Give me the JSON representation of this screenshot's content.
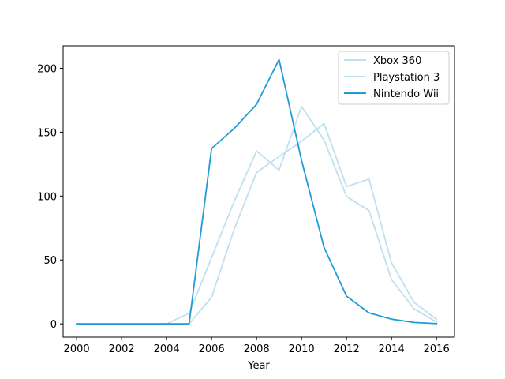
{
  "chart_data": {
    "type": "line",
    "title": "",
    "xlabel": "Year",
    "ylabel": "",
    "xlim": [
      1999.4,
      2016.8
    ],
    "ylim": [
      -10.4,
      217.6
    ],
    "x_ticks": [
      2000,
      2002,
      2004,
      2006,
      2008,
      2010,
      2012,
      2014,
      2016
    ],
    "y_ticks": [
      0,
      50,
      100,
      150,
      200
    ],
    "x": [
      2000,
      2001,
      2002,
      2003,
      2004,
      2005,
      2006,
      2007,
      2008,
      2009,
      2010,
      2011,
      2012,
      2013,
      2014,
      2015,
      2016
    ],
    "grid": false,
    "legend_position": "top-right",
    "series": [
      {
        "name": "Xbox 360",
        "color": "#bfe0ef",
        "values": [
          0,
          0,
          0,
          0,
          0,
          8.3,
          51.8,
          95.7,
          135.2,
          120.3,
          170.0,
          143.8,
          99.7,
          88.6,
          34.7,
          11.8,
          1.5
        ]
      },
      {
        "name": "Playstation 3",
        "color": "#bfe0ef",
        "values": [
          0,
          0,
          0,
          0,
          0,
          0,
          20.9,
          73.8,
          118.5,
          130.9,
          142.9,
          156.8,
          107.4,
          113.3,
          47.8,
          16.8,
          3.6
        ]
      },
      {
        "name": "Nintendo Wii",
        "color": "#1f9bd7",
        "values": [
          0,
          0,
          0,
          0,
          0,
          0,
          137.2,
          152.8,
          171.8,
          206.9,
          127.9,
          59.8,
          21.7,
          8.6,
          3.7,
          1.1,
          0.2
        ]
      }
    ]
  }
}
